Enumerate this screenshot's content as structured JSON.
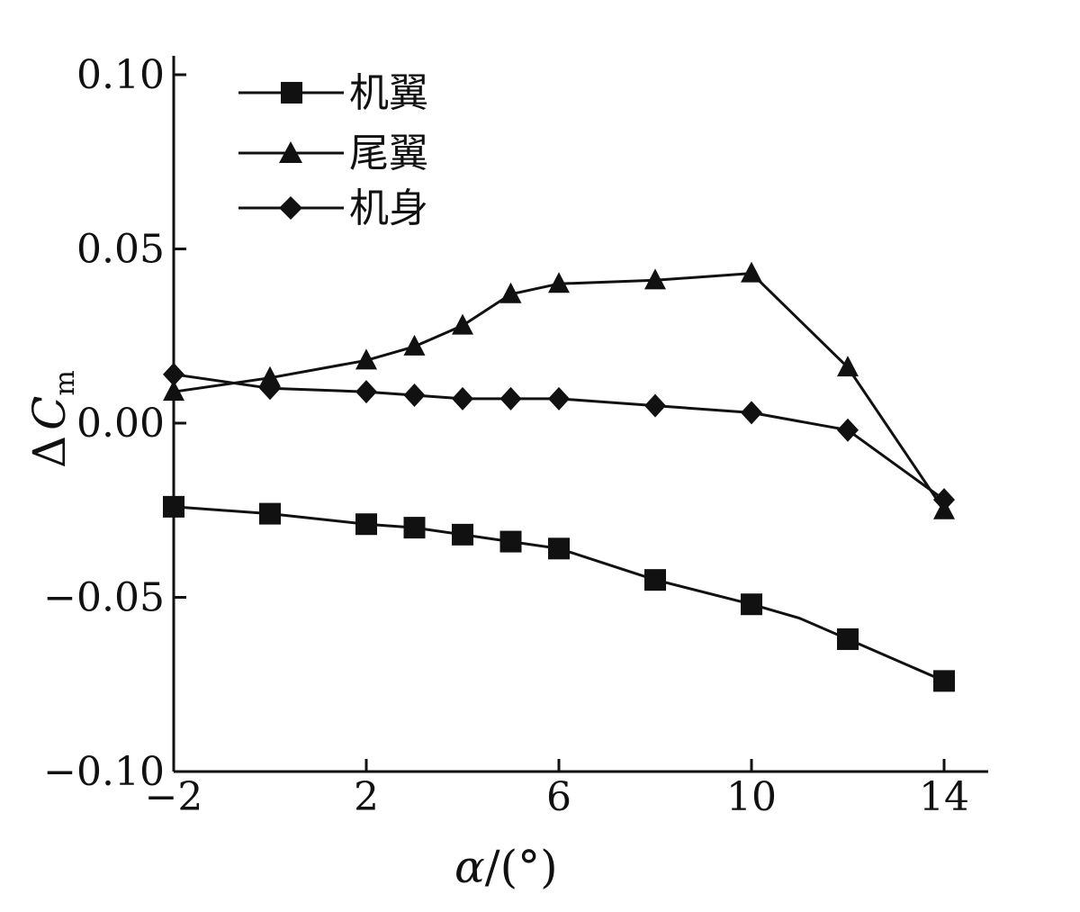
{
  "chart_data": {
    "type": "line",
    "xlabel_symbol": "α",
    "xlabel_unit": "/(°)",
    "ylabel_delta": "Δ",
    "ylabel_symbol": "C",
    "ylabel_sub": "m",
    "x_ticks": [
      "−2",
      "2",
      "6",
      "10",
      "14"
    ],
    "y_ticks": [
      "0.10",
      "0.05",
      "0.00",
      "−0.05",
      "−0.10"
    ],
    "xlim": [
      -2,
      14
    ],
    "ylim": [
      -0.1,
      0.1
    ],
    "grid": false,
    "legend_position": "top-left",
    "series": [
      {
        "name": "机翼",
        "marker": "square",
        "x": [
          -2,
          0,
          2,
          3,
          4,
          5,
          6,
          8,
          10,
          11,
          12,
          14
        ],
        "y": [
          -0.024,
          -0.026,
          -0.029,
          -0.03,
          -0.032,
          -0.034,
          -0.036,
          -0.045,
          -0.052,
          -0.056,
          -0.062,
          -0.074
        ],
        "markers_at": [
          -2,
          0,
          2,
          3,
          4,
          5,
          6,
          8,
          10,
          12,
          14
        ]
      },
      {
        "name": "尾翼",
        "marker": "triangle",
        "x": [
          -2,
          0,
          2,
          3,
          4,
          5,
          6,
          8,
          10,
          12,
          14
        ],
        "y": [
          0.009,
          0.013,
          0.018,
          0.022,
          0.028,
          0.037,
          0.04,
          0.041,
          0.043,
          0.016,
          -0.025
        ],
        "markers_at": [
          -2,
          0,
          2,
          3,
          4,
          5,
          6,
          8,
          10,
          12,
          14
        ]
      },
      {
        "name": "机身",
        "marker": "diamond",
        "x": [
          -2,
          0,
          2,
          3,
          4,
          5,
          6,
          8,
          10,
          12,
          14
        ],
        "y": [
          0.014,
          0.01,
          0.009,
          0.008,
          0.007,
          0.007,
          0.007,
          0.005,
          0.003,
          -0.002,
          -0.022
        ],
        "markers_at": [
          -2,
          0,
          2,
          3,
          4,
          5,
          6,
          8,
          10,
          12,
          14
        ]
      }
    ]
  }
}
